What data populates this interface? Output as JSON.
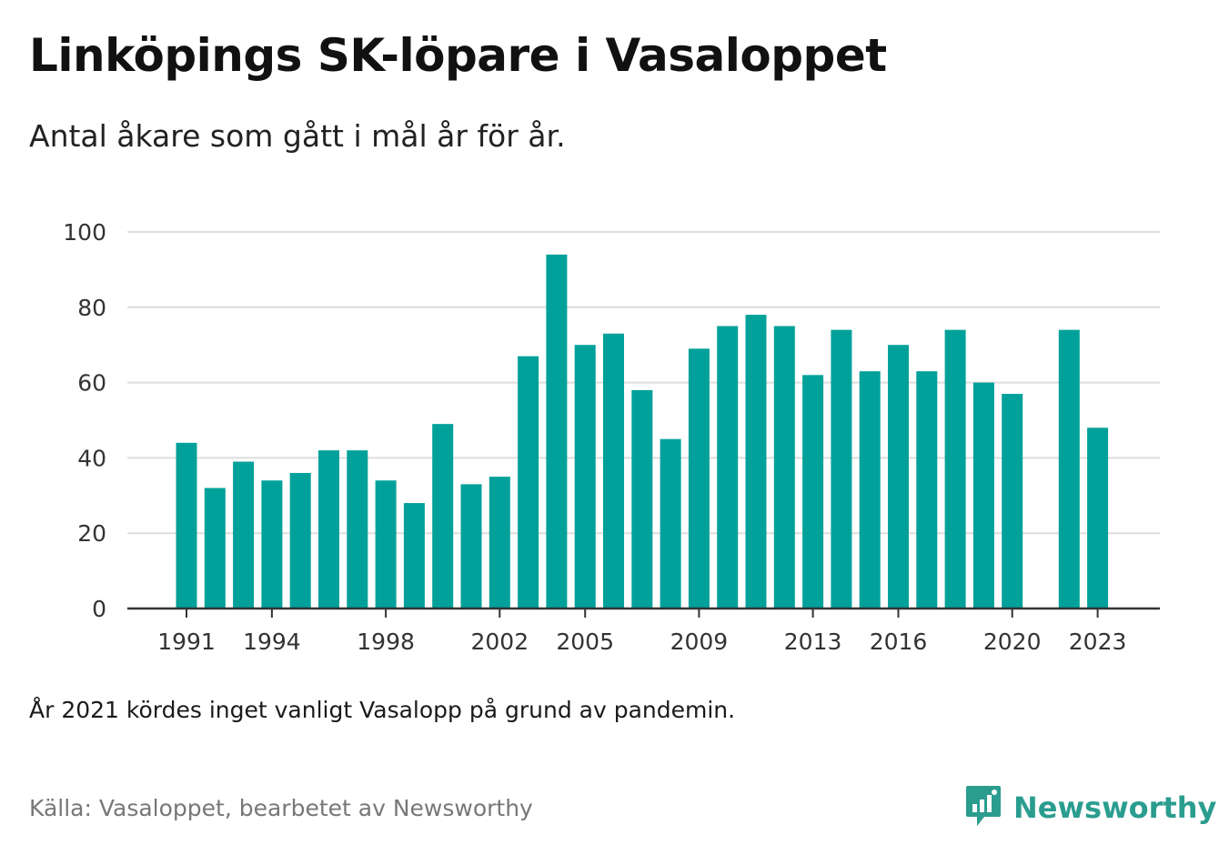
{
  "header": {
    "title": "Linköpings SK-löpare i Vasaloppet",
    "subtitle": "Antal åkare som gått i mål år för år."
  },
  "footer": {
    "note": "År 2021 kördes inget vanligt Vasalopp på grund av pandemin.",
    "source": "Källa: Vasaloppet, bearbetet av Newsworthy",
    "brand": "Newsworthy"
  },
  "colors": {
    "bar": "#00a19a",
    "brand": "#2a9d8f",
    "grid": "#dddddd",
    "axis": "#333333"
  },
  "chart_data": {
    "type": "bar",
    "categories": [
      1991,
      1992,
      1993,
      1994,
      1995,
      1996,
      1997,
      1998,
      1999,
      2000,
      2001,
      2002,
      2003,
      2004,
      2005,
      2006,
      2007,
      2008,
      2009,
      2010,
      2011,
      2012,
      2013,
      2014,
      2015,
      2016,
      2017,
      2018,
      2019,
      2020,
      2021,
      2022,
      2023
    ],
    "values": [
      44,
      32,
      39,
      34,
      36,
      42,
      42,
      34,
      28,
      49,
      33,
      35,
      67,
      94,
      70,
      73,
      58,
      45,
      69,
      75,
      78,
      75,
      62,
      74,
      63,
      70,
      63,
      74,
      60,
      57,
      null,
      74,
      48
    ],
    "x_tick_labels": [
      "1991",
      "1994",
      "1998",
      "2002",
      "2005",
      "2009",
      "2013",
      "2016",
      "2020",
      "2023"
    ],
    "y_ticks": [
      0,
      20,
      40,
      60,
      80,
      100
    ],
    "ylim": [
      0,
      100
    ],
    "grid": true,
    "xlabel": "",
    "ylabel": ""
  }
}
